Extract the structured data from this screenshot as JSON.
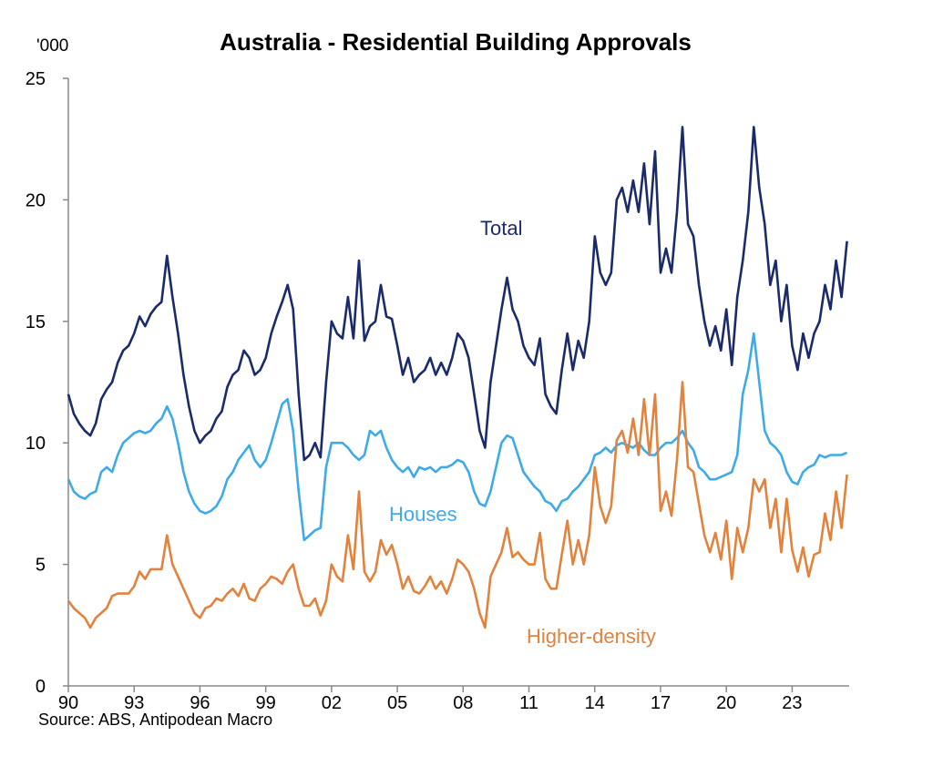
{
  "chart_data": {
    "type": "line",
    "title": "Australia - Residential Building Approvals",
    "ylabel": "'000",
    "xlabel": "",
    "source": "Source: ABS, Antipodean Macro",
    "ylim": [
      0,
      25
    ],
    "xlim": [
      1990,
      2025.6
    ],
    "yticks": [
      "0",
      "5",
      "10",
      "15",
      "20",
      "25"
    ],
    "xticks": [
      "90",
      "93",
      "96",
      "99",
      "02",
      "05",
      "08",
      "11",
      "14",
      "17",
      "20",
      "23"
    ],
    "x_start": 1990,
    "x_step": 0.25,
    "grid": false,
    "legend": "inline labels",
    "series": [
      {
        "name": "Total",
        "color": "#1b2a6b",
        "values": [
          12.0,
          11.2,
          10.8,
          10.5,
          10.3,
          10.8,
          11.8,
          12.2,
          12.5,
          13.3,
          13.8,
          14.0,
          14.5,
          15.2,
          14.8,
          15.3,
          15.6,
          15.8,
          17.7,
          16.0,
          14.5,
          12.8,
          11.5,
          10.5,
          10.0,
          10.3,
          10.5,
          11.0,
          11.3,
          12.3,
          12.8,
          13.0,
          13.8,
          13.5,
          12.8,
          13.0,
          13.5,
          14.5,
          15.2,
          15.8,
          16.5,
          15.5,
          12.0,
          9.3,
          9.5,
          10.0,
          9.4,
          12.5,
          15.0,
          14.5,
          14.3,
          16.0,
          14.3,
          17.5,
          14.2,
          14.8,
          15.0,
          16.5,
          15.2,
          15.1,
          14.0,
          12.8,
          13.5,
          12.5,
          12.8,
          13.0,
          13.5,
          12.8,
          13.3,
          12.8,
          13.5,
          14.5,
          14.2,
          13.5,
          12.0,
          10.5,
          9.8,
          12.5,
          14.0,
          15.5,
          16.8,
          15.5,
          15.0,
          14.0,
          13.5,
          13.2,
          14.3,
          12.0,
          11.5,
          11.2,
          13.0,
          14.5,
          13.0,
          14.2,
          13.5,
          15.0,
          18.5,
          17.0,
          16.5,
          17.0,
          20.0,
          20.5,
          19.5,
          20.8,
          19.5,
          21.5,
          19.0,
          22.0,
          17.0,
          18.0,
          17.0,
          19.5,
          23.0,
          19.0,
          18.5,
          16.5,
          15.0,
          14.0,
          14.8,
          13.8,
          15.5,
          13.2,
          16.0,
          17.5,
          19.5,
          23.0,
          20.5,
          19.0,
          16.5,
          17.5,
          15.0,
          16.5,
          14.0,
          13.0,
          14.5,
          13.5,
          14.5,
          15.0,
          16.5,
          15.5,
          17.5,
          16.0,
          18.3
        ]
      },
      {
        "name": "Houses",
        "color": "#3eaae8",
        "values": [
          8.5,
          8.0,
          7.8,
          7.7,
          7.9,
          8.0,
          8.8,
          9.0,
          8.8,
          9.5,
          10.0,
          10.2,
          10.4,
          10.5,
          10.4,
          10.5,
          10.8,
          11.0,
          11.5,
          11.0,
          10.0,
          8.8,
          8.0,
          7.5,
          7.2,
          7.1,
          7.2,
          7.4,
          7.8,
          8.5,
          8.8,
          9.3,
          9.6,
          9.9,
          9.3,
          9.0,
          9.3,
          10.0,
          10.8,
          11.6,
          11.8,
          10.5,
          8.0,
          6.0,
          6.2,
          6.4,
          6.5,
          9.0,
          10.0,
          10.0,
          10.0,
          9.8,
          9.5,
          9.3,
          9.5,
          10.5,
          10.3,
          10.5,
          9.8,
          9.3,
          9.0,
          8.8,
          9.0,
          8.6,
          9.0,
          8.9,
          9.0,
          8.8,
          9.0,
          9.0,
          9.1,
          9.3,
          9.2,
          8.8,
          8.0,
          7.5,
          7.4,
          8.0,
          9.0,
          10.0,
          10.3,
          10.2,
          9.5,
          8.8,
          8.5,
          8.2,
          8.0,
          7.6,
          7.5,
          7.2,
          7.6,
          7.7,
          8.0,
          8.2,
          8.5,
          8.8,
          9.5,
          9.6,
          9.8,
          9.6,
          9.9,
          10.0,
          9.9,
          9.8,
          10.0,
          9.7,
          9.5,
          9.5,
          9.8,
          10.0,
          10.0,
          10.2,
          10.5,
          10.0,
          9.7,
          9.0,
          8.8,
          8.5,
          8.5,
          8.6,
          8.7,
          8.8,
          9.5,
          12.0,
          13.0,
          14.5,
          12.5,
          10.5,
          10.0,
          9.8,
          9.5,
          8.8,
          8.4,
          8.3,
          8.8,
          9.0,
          9.1,
          9.5,
          9.4,
          9.5,
          9.5,
          9.5,
          9.6
        ]
      },
      {
        "name": "Higher-density",
        "color": "#e2823c",
        "values": [
          3.5,
          3.2,
          3.0,
          2.8,
          2.4,
          2.8,
          3.0,
          3.2,
          3.7,
          3.8,
          3.8,
          3.8,
          4.1,
          4.7,
          4.4,
          4.8,
          4.8,
          4.8,
          6.2,
          5.0,
          4.5,
          4.0,
          3.5,
          3.0,
          2.8,
          3.2,
          3.3,
          3.6,
          3.5,
          3.8,
          4.0,
          3.7,
          4.2,
          3.6,
          3.5,
          4.0,
          4.2,
          4.5,
          4.4,
          4.2,
          4.7,
          5.0,
          4.0,
          3.3,
          3.3,
          3.6,
          2.9,
          3.5,
          5.0,
          4.5,
          4.3,
          6.2,
          4.8,
          8.0,
          4.7,
          4.3,
          4.7,
          6.0,
          5.4,
          5.8,
          5.0,
          4.0,
          4.5,
          3.9,
          3.8,
          4.1,
          4.5,
          4.0,
          4.3,
          3.8,
          4.4,
          5.2,
          5.0,
          4.7,
          4.0,
          3.0,
          2.4,
          4.5,
          5.0,
          5.5,
          6.5,
          5.3,
          5.5,
          5.2,
          5.0,
          5.0,
          6.3,
          4.4,
          4.0,
          4.0,
          5.4,
          6.8,
          5.0,
          6.0,
          5.0,
          6.2,
          9.0,
          7.4,
          6.7,
          7.4,
          10.1,
          10.5,
          9.6,
          11.0,
          9.5,
          11.8,
          9.5,
          12.0,
          7.2,
          8.0,
          7.0,
          9.3,
          12.5,
          9.0,
          8.8,
          7.5,
          6.2,
          5.5,
          6.3,
          5.2,
          6.8,
          4.4,
          6.5,
          5.5,
          6.5,
          8.5,
          8.0,
          8.5,
          6.5,
          7.7,
          5.5,
          7.7,
          5.6,
          4.7,
          5.7,
          4.5,
          5.4,
          5.5,
          7.1,
          6.0,
          8.0,
          6.5,
          8.7
        ]
      }
    ]
  }
}
